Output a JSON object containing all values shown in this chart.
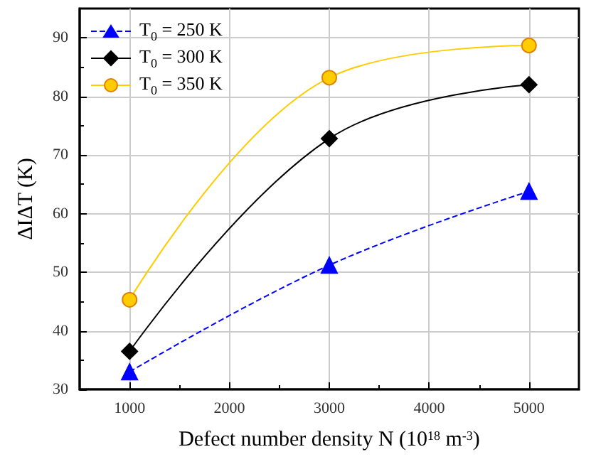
{
  "chart_data": {
    "type": "line",
    "xlabel": "Defect number density N (10$^{18}$ m$^{-3}$)",
    "ylabel": "ΔIΔT (K)",
    "xlim": [
      500,
      5500
    ],
    "xticks": [
      1000,
      2000,
      3000,
      4000,
      5000
    ],
    "ylim": [
      30,
      95
    ],
    "yticks": [
      30,
      40,
      50,
      60,
      70,
      80,
      90
    ],
    "grid": true,
    "legend": "top left",
    "series": [
      {
        "name": "T$_{0}$ = 250 K",
        "color": "#0000ff",
        "marker": "triangle",
        "line_style": "dashed",
        "x": [
          1000,
          3000,
          5000
        ],
        "values": [
          33,
          51.2,
          63.8
        ]
      },
      {
        "name": "T$_{0}$ = 300 K",
        "color": "#000000",
        "marker": "diamond",
        "line_style": "solid",
        "x": [
          1000,
          3000,
          5000
        ],
        "values": [
          36.5,
          72.8,
          82
        ]
      },
      {
        "name": "T$_{0}$ = 350 K",
        "color": "#ffcc00",
        "marker": "circle",
        "line_style": "solid",
        "x": [
          1000,
          3000,
          5000
        ],
        "values": [
          45.3,
          83.2,
          88.7
        ]
      }
    ]
  }
}
